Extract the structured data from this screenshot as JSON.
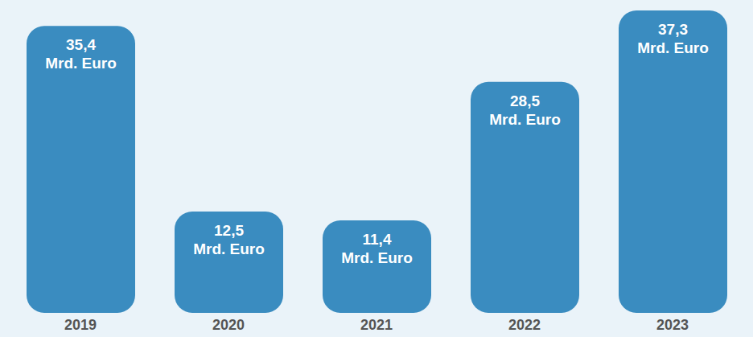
{
  "chart_data": {
    "type": "bar",
    "categories": [
      "2019",
      "2020",
      "2021",
      "2022",
      "2023"
    ],
    "values": [
      35.4,
      12.5,
      11.4,
      28.5,
      37.3
    ],
    "value_labels": [
      "35,4 Mrd. Euro",
      "12,5 Mrd. Euro",
      "11,4 Mrd. Euro",
      "28,5 Mrd. Euro",
      "37,3 Mrd. Euro"
    ],
    "data_labels": true,
    "color": "#3a8cc0",
    "ylim": [
      0,
      38
    ],
    "grid": false,
    "tick_labels": "x"
  }
}
